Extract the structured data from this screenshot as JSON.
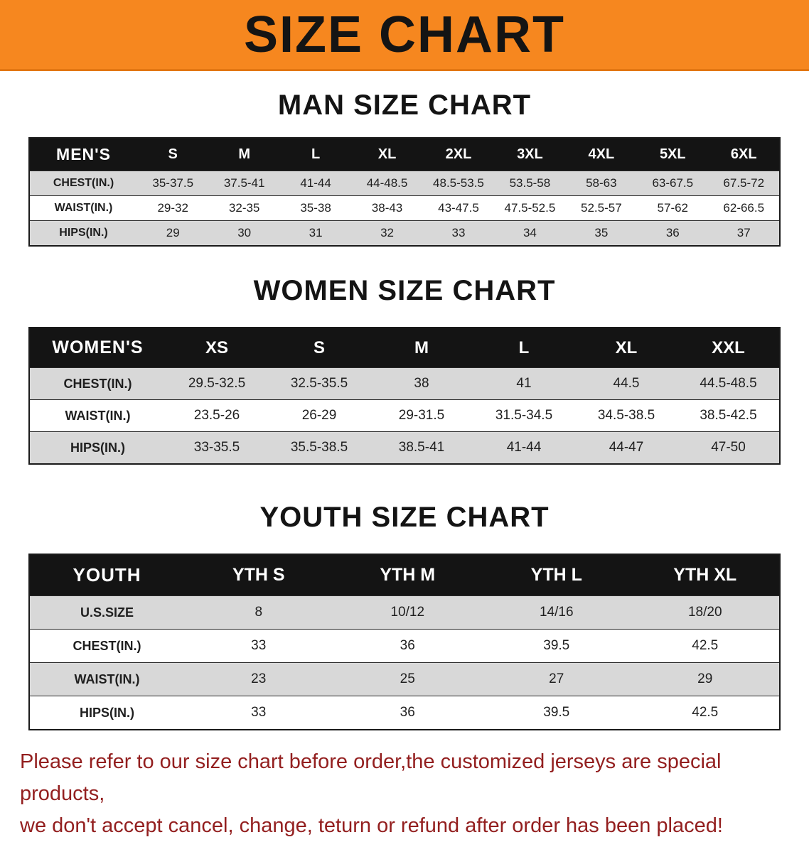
{
  "banner": {
    "title": "SIZE CHART"
  },
  "colors": {
    "banner_bg": "#f6871f",
    "header_bg": "#141414",
    "row_stripe": "#d8d8d8",
    "note_text": "#931f1f"
  },
  "man": {
    "heading": "MAN SIZE CHART",
    "table": {
      "header": [
        "MEN'S",
        "S",
        "M",
        "L",
        "XL",
        "2XL",
        "3XL",
        "4XL",
        "5XL",
        "6XL"
      ],
      "rows": [
        [
          "CHEST(IN.)",
          "35-37.5",
          "37.5-41",
          "41-44",
          "44-48.5",
          "48.5-53.5",
          "53.5-58",
          "58-63",
          "63-67.5",
          "67.5-72"
        ],
        [
          "WAIST(IN.)",
          "29-32",
          "32-35",
          "35-38",
          "38-43",
          "43-47.5",
          "47.5-52.5",
          "52.5-57",
          "57-62",
          "62-66.5"
        ],
        [
          "HIPS(IN.)",
          "29",
          "30",
          "31",
          "32",
          "33",
          "34",
          "35",
          "36",
          "37"
        ]
      ]
    }
  },
  "women": {
    "heading": "WOMEN SIZE CHART",
    "table": {
      "header": [
        "WOMEN'S",
        "XS",
        "S",
        "M",
        "L",
        "XL",
        "XXL"
      ],
      "rows": [
        [
          "CHEST(IN.)",
          "29.5-32.5",
          "32.5-35.5",
          "38",
          "41",
          "44.5",
          "44.5-48.5"
        ],
        [
          "WAIST(IN.)",
          "23.5-26",
          "26-29",
          "29-31.5",
          "31.5-34.5",
          "34.5-38.5",
          "38.5-42.5"
        ],
        [
          "HIPS(IN.)",
          "33-35.5",
          "35.5-38.5",
          "38.5-41",
          "41-44",
          "44-47",
          "47-50"
        ]
      ]
    }
  },
  "youth": {
    "heading": "YOUTH SIZE CHART",
    "table": {
      "header": [
        "YOUTH",
        "YTH S",
        "YTH M",
        "YTH L",
        "YTH XL"
      ],
      "rows": [
        [
          "U.S.SIZE",
          "8",
          "10/12",
          "14/16",
          "18/20"
        ],
        [
          "CHEST(IN.)",
          "33",
          "36",
          "39.5",
          "42.5"
        ],
        [
          "WAIST(IN.)",
          "23",
          "25",
          "27",
          "29"
        ],
        [
          "HIPS(IN.)",
          "33",
          "36",
          "39.5",
          "42.5"
        ]
      ]
    }
  },
  "footer": {
    "line1": "Please refer to our size chart before order,the customized jerseys are special products,",
    "line2": "we don't accept cancel, change, teturn or refund after order has been placed!"
  }
}
